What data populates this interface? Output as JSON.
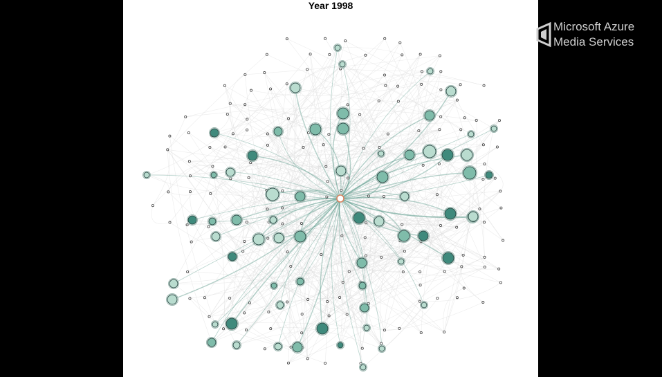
{
  "title": "Year 1998",
  "watermark": {
    "line1": "Microsoft Azure",
    "line2": "Media Services"
  },
  "colors": {
    "background": "#ffffff",
    "frame": "#000000",
    "hub": "#d9835f",
    "edge_faint": "#dcdcdc",
    "edge_strong": "#5f9e8f",
    "node_dark": "#3f8a7c",
    "node_mid": "#7fbcaa",
    "node_light": "#b9dccf"
  }
}
